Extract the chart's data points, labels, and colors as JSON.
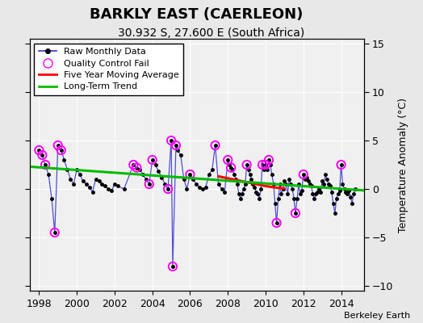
{
  "title": "BARKLY EAST (CAERLEON)",
  "subtitle": "30.932 S, 27.600 E (South Africa)",
  "ylabel": "Temperature Anomaly (°C)",
  "attribution": "Berkeley Earth",
  "xlim": [
    1997.5,
    2015.2
  ],
  "ylim": [
    -10.5,
    15.5
  ],
  "yticks": [
    -10,
    -5,
    0,
    5,
    10,
    15
  ],
  "xticks": [
    1998,
    2000,
    2002,
    2004,
    2006,
    2008,
    2010,
    2012,
    2014
  ],
  "raw_data": [
    [
      1998.0,
      4.0
    ],
    [
      1998.17,
      3.5
    ],
    [
      1998.33,
      2.5
    ],
    [
      1998.5,
      1.5
    ],
    [
      1998.67,
      -1.0
    ],
    [
      1998.83,
      -4.5
    ],
    [
      1999.0,
      4.5
    ],
    [
      1999.17,
      4.0
    ],
    [
      1999.33,
      3.0
    ],
    [
      1999.5,
      2.0
    ],
    [
      1999.67,
      1.0
    ],
    [
      1999.83,
      0.5
    ],
    [
      2000.0,
      2.0
    ],
    [
      2000.17,
      1.5
    ],
    [
      2000.33,
      0.8
    ],
    [
      2000.5,
      0.5
    ],
    [
      2000.67,
      0.2
    ],
    [
      2000.83,
      -0.3
    ],
    [
      2001.0,
      1.0
    ],
    [
      2001.17,
      0.8
    ],
    [
      2001.33,
      0.5
    ],
    [
      2001.5,
      0.3
    ],
    [
      2001.67,
      0.0
    ],
    [
      2001.83,
      -0.2
    ],
    [
      2002.0,
      0.5
    ],
    [
      2002.17,
      0.3
    ],
    [
      2002.5,
      0.0
    ],
    [
      2003.0,
      2.5
    ],
    [
      2003.17,
      2.2
    ],
    [
      2003.33,
      2.0
    ],
    [
      2003.5,
      1.5
    ],
    [
      2003.67,
      1.0
    ],
    [
      2003.83,
      0.5
    ],
    [
      2004.0,
      3.0
    ],
    [
      2004.17,
      2.5
    ],
    [
      2004.33,
      1.8
    ],
    [
      2004.5,
      1.2
    ],
    [
      2004.67,
      0.5
    ],
    [
      2004.83,
      0.0
    ],
    [
      2005.0,
      5.0
    ],
    [
      2005.08,
      -8.0
    ],
    [
      2005.25,
      4.5
    ],
    [
      2005.33,
      4.0
    ],
    [
      2005.5,
      3.5
    ],
    [
      2005.67,
      1.0
    ],
    [
      2005.83,
      0.0
    ],
    [
      2006.0,
      1.5
    ],
    [
      2006.17,
      1.0
    ],
    [
      2006.33,
      0.5
    ],
    [
      2006.5,
      0.2
    ],
    [
      2006.67,
      0.0
    ],
    [
      2006.83,
      0.2
    ],
    [
      2007.0,
      1.5
    ],
    [
      2007.17,
      2.0
    ],
    [
      2007.33,
      4.5
    ],
    [
      2007.5,
      0.5
    ],
    [
      2007.67,
      0.0
    ],
    [
      2007.83,
      -0.3
    ],
    [
      2008.0,
      3.0
    ],
    [
      2008.08,
      2.5
    ],
    [
      2008.17,
      2.2
    ],
    [
      2008.25,
      2.0
    ],
    [
      2008.33,
      1.5
    ],
    [
      2008.42,
      1.0
    ],
    [
      2008.5,
      0.5
    ],
    [
      2008.58,
      -0.5
    ],
    [
      2008.67,
      -1.0
    ],
    [
      2008.75,
      -0.5
    ],
    [
      2008.83,
      0.0
    ],
    [
      2008.92,
      0.5
    ],
    [
      2009.0,
      2.5
    ],
    [
      2009.08,
      2.0
    ],
    [
      2009.17,
      1.5
    ],
    [
      2009.25,
      1.0
    ],
    [
      2009.33,
      0.5
    ],
    [
      2009.42,
      0.2
    ],
    [
      2009.5,
      -0.3
    ],
    [
      2009.58,
      -0.5
    ],
    [
      2009.67,
      -1.0
    ],
    [
      2009.75,
      0.0
    ],
    [
      2009.83,
      2.5
    ],
    [
      2009.92,
      2.0
    ],
    [
      2010.0,
      2.5
    ],
    [
      2010.08,
      2.0
    ],
    [
      2010.17,
      3.0
    ],
    [
      2010.25,
      2.5
    ],
    [
      2010.33,
      1.5
    ],
    [
      2010.42,
      0.5
    ],
    [
      2010.5,
      -1.5
    ],
    [
      2010.58,
      -3.5
    ],
    [
      2010.67,
      -1.0
    ],
    [
      2010.75,
      0.5
    ],
    [
      2010.83,
      -0.5
    ],
    [
      2010.92,
      0.0
    ],
    [
      2011.0,
      0.8
    ],
    [
      2011.08,
      0.5
    ],
    [
      2011.17,
      -0.5
    ],
    [
      2011.25,
      1.0
    ],
    [
      2011.33,
      0.5
    ],
    [
      2011.42,
      0.0
    ],
    [
      2011.5,
      -1.0
    ],
    [
      2011.58,
      -2.5
    ],
    [
      2011.67,
      -1.0
    ],
    [
      2011.75,
      0.5
    ],
    [
      2011.83,
      -0.5
    ],
    [
      2011.92,
      -0.2
    ],
    [
      2012.0,
      1.5
    ],
    [
      2012.08,
      1.0
    ],
    [
      2012.17,
      1.2
    ],
    [
      2012.25,
      0.8
    ],
    [
      2012.33,
      0.5
    ],
    [
      2012.42,
      0.3
    ],
    [
      2012.5,
      -0.5
    ],
    [
      2012.58,
      -1.0
    ],
    [
      2012.67,
      -0.5
    ],
    [
      2012.75,
      -0.3
    ],
    [
      2012.83,
      0.0
    ],
    [
      2012.92,
      -0.3
    ],
    [
      2013.0,
      0.8
    ],
    [
      2013.08,
      0.5
    ],
    [
      2013.17,
      1.5
    ],
    [
      2013.25,
      1.0
    ],
    [
      2013.33,
      0.5
    ],
    [
      2013.42,
      0.3
    ],
    [
      2013.5,
      -0.3
    ],
    [
      2013.58,
      -1.5
    ],
    [
      2013.67,
      -2.5
    ],
    [
      2013.75,
      -1.0
    ],
    [
      2013.83,
      -0.5
    ],
    [
      2013.92,
      -0.2
    ],
    [
      2014.0,
      2.5
    ],
    [
      2014.08,
      0.5
    ],
    [
      2014.17,
      0.0
    ],
    [
      2014.25,
      -0.3
    ],
    [
      2014.33,
      -0.5
    ],
    [
      2014.42,
      -0.2
    ],
    [
      2014.5,
      -0.8
    ],
    [
      2014.58,
      -1.5
    ],
    [
      2014.67,
      -0.5
    ],
    [
      2014.75,
      0.0
    ]
  ],
  "qc_fail_points": [
    [
      1998.0,
      4.0
    ],
    [
      1998.17,
      3.5
    ],
    [
      1998.33,
      2.5
    ],
    [
      1998.83,
      -4.5
    ],
    [
      1999.0,
      4.5
    ],
    [
      1999.17,
      4.0
    ],
    [
      2003.0,
      2.5
    ],
    [
      2003.17,
      2.2
    ],
    [
      2003.83,
      0.5
    ],
    [
      2004.0,
      3.0
    ],
    [
      2004.83,
      0.0
    ],
    [
      2005.0,
      5.0
    ],
    [
      2005.08,
      -8.0
    ],
    [
      2005.25,
      4.5
    ],
    [
      2006.0,
      1.5
    ],
    [
      2007.33,
      4.5
    ],
    [
      2008.0,
      3.0
    ],
    [
      2008.17,
      2.2
    ],
    [
      2009.0,
      2.5
    ],
    [
      2009.83,
      2.5
    ],
    [
      2010.0,
      2.5
    ],
    [
      2010.17,
      3.0
    ],
    [
      2010.58,
      -3.5
    ],
    [
      2011.58,
      -2.5
    ],
    [
      2012.0,
      1.5
    ],
    [
      2014.0,
      2.5
    ]
  ],
  "moving_avg": [
    [
      2007.5,
      1.3
    ],
    [
      2008.0,
      1.1
    ],
    [
      2008.5,
      0.9
    ],
    [
      2009.0,
      0.7
    ],
    [
      2009.5,
      0.5
    ],
    [
      2010.0,
      0.3
    ],
    [
      2010.5,
      0.15
    ],
    [
      2011.0,
      0.05
    ]
  ],
  "trend_line": [
    [
      1997.5,
      2.3
    ],
    [
      2015.2,
      -0.15
    ]
  ],
  "plot_bg": "#f0f0f0",
  "fig_bg": "#e8e8e8",
  "raw_line_color": "#3333cc",
  "raw_dot_color": "#000000",
  "qc_color": "#ff00ff",
  "moving_avg_color": "#ff0000",
  "trend_color": "#00bb00",
  "grid_color": "#ffffff",
  "title_fontsize": 13,
  "subtitle_fontsize": 10
}
